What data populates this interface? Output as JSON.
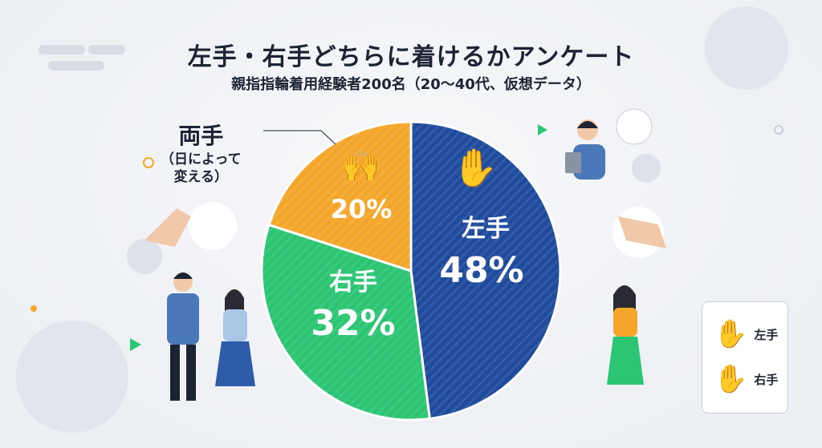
{
  "header": {
    "title": "左手・右手どちらに着けるかアンケート",
    "subtitle": "親指指輪着用経験者200名（20〜40代、仮想データ）"
  },
  "chart_data": {
    "type": "pie",
    "title": "左手・右手どちらに着けるかアンケート",
    "subtitle": "親指指輪着用経験者200名（20〜40代、仮想データ）",
    "slices": [
      {
        "label": "左手",
        "value": 48,
        "value_label": "48%",
        "color": "#1f4b9c"
      },
      {
        "label": "右手",
        "value": 32,
        "value_label": "32%",
        "color": "#2bc573"
      },
      {
        "label": "両手",
        "value": 20,
        "value_label": "20%",
        "color": "#f4a62a"
      }
    ],
    "callout": {
      "label": "両手",
      "note": "（日によって\n変える）"
    },
    "legend": {
      "placement": "bottom-right",
      "items": [
        {
          "label": "左手",
          "icon": "white-hand-icon"
        },
        {
          "label": "右手",
          "icon": "skin-hand-icon"
        }
      ]
    }
  }
}
